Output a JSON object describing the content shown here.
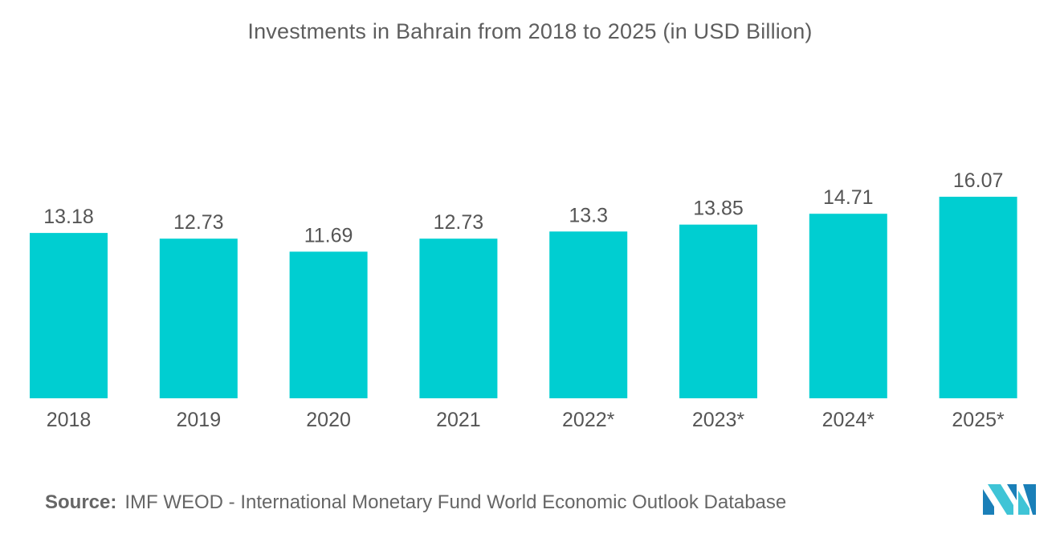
{
  "chart_data": {
    "type": "bar",
    "title": "Investments in Bahrain from 2018 to 2025 (in USD Billion)",
    "xlabel": "",
    "ylabel": "",
    "categories": [
      "2018",
      "2019",
      "2020",
      "2021",
      "2022*",
      "2023*",
      "2024*",
      "2025*"
    ],
    "values": [
      13.18,
      12.73,
      11.69,
      12.73,
      13.3,
      13.85,
      14.71,
      16.07
    ],
    "value_labels": [
      "13.18",
      "12.73",
      "11.69",
      "12.73",
      "13.3",
      "13.85",
      "14.71",
      "16.07"
    ],
    "ylim": [
      0,
      16.07
    ],
    "grid": false,
    "legend": "none",
    "colors": {
      "bar": "#00CED1",
      "label": "#555555",
      "title": "#5e5e5e"
    }
  },
  "footer": {
    "source_label": "Source:",
    "source_text": "IMF WEOD - International Monetary Fund World Economic Outlook Database"
  },
  "logo": {
    "icon": "mordor-logo-icon",
    "colors": [
      "#1a7fb8",
      "#3fc4d6"
    ]
  }
}
